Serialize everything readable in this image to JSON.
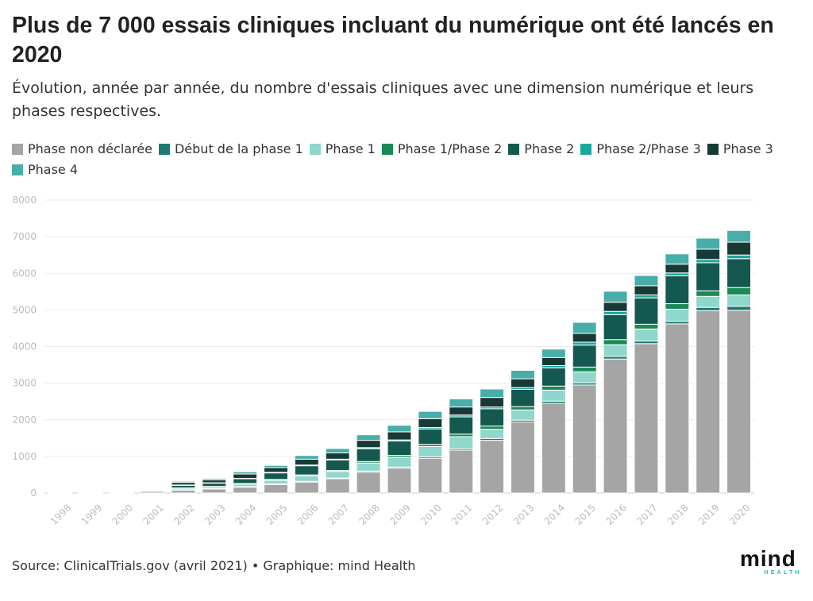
{
  "title": "Plus de 7 000 essais cliniques incluant du numérique ont été lancés en 2020",
  "subtitle": "Évolution, année par année, du nombre d'essais cliniques avec une dimension numérique et leurs phases respectives.",
  "source": "Source: ClinicalTrials.gov (avril 2021) • Graphique: mind Health",
  "logo": {
    "word": "mind",
    "sub": "HEALTH"
  },
  "chart_data": {
    "type": "bar",
    "stacked": true,
    "title": "Plus de 7 000 essais cliniques incluant du numérique ont été lancés en 2020",
    "subtitle": "Évolution, année par année, du nombre d'essais cliniques avec une dimension numérique et leurs phases respectives.",
    "xlabel": "",
    "ylabel": "",
    "ylim": [
      0,
      8000
    ],
    "yticks": [
      0,
      1000,
      2000,
      3000,
      4000,
      5000,
      6000,
      7000,
      8000
    ],
    "grid": true,
    "legend_position": "top",
    "categories": [
      "1998",
      "1999",
      "2000",
      "2001",
      "2002",
      "2003",
      "2004",
      "2005",
      "2006",
      "2007",
      "2008",
      "2009",
      "2010",
      "2011",
      "2012",
      "2013",
      "2014",
      "2015",
      "2016",
      "2017",
      "2018",
      "2019",
      "2020"
    ],
    "series": [
      {
        "name": "Phase non déclarée",
        "color": "#a5a5a5",
        "values": [
          20,
          8,
          15,
          50,
          80,
          110,
          160,
          230,
          300,
          390,
          570,
          680,
          950,
          1170,
          1440,
          1940,
          2450,
          2950,
          3660,
          4080,
          4620,
          4980,
          4990
        ]
      },
      {
        "name": "Début de la phase 1",
        "color": "#1d7a72",
        "values": [
          0,
          0,
          0,
          5,
          10,
          10,
          15,
          20,
          20,
          20,
          30,
          30,
          40,
          40,
          50,
          50,
          60,
          60,
          70,
          70,
          70,
          90,
          110
        ]
      },
      {
        "name": "Phase 1",
        "color": "#8fd6cc",
        "values": [
          10,
          5,
          5,
          20,
          40,
          50,
          70,
          100,
          150,
          180,
          220,
          270,
          280,
          330,
          250,
          280,
          300,
          300,
          320,
          330,
          330,
          300,
          310
        ]
      },
      {
        "name": "Phase 1/Phase 2",
        "color": "#1a8a55",
        "values": [
          0,
          0,
          0,
          5,
          10,
          10,
          15,
          20,
          25,
          25,
          40,
          50,
          60,
          70,
          90,
          90,
          110,
          130,
          140,
          130,
          150,
          150,
          200
        ]
      },
      {
        "name": "Phase 2",
        "color": "#15584f",
        "values": [
          5,
          5,
          5,
          20,
          70,
          90,
          130,
          180,
          250,
          290,
          350,
          390,
          420,
          470,
          470,
          470,
          500,
          600,
          680,
          720,
          760,
          770,
          790
        ]
      },
      {
        "name": "Phase 2/Phase 3",
        "color": "#19a89e",
        "values": [
          0,
          0,
          0,
          0,
          10,
          10,
          10,
          15,
          20,
          20,
          30,
          30,
          40,
          50,
          50,
          50,
          60,
          80,
          90,
          80,
          80,
          90,
          100
        ]
      },
      {
        "name": "Phase 3",
        "color": "#183a36",
        "values": [
          5,
          0,
          0,
          15,
          70,
          80,
          120,
          130,
          160,
          170,
          200,
          220,
          240,
          220,
          260,
          240,
          220,
          240,
          250,
          250,
          240,
          280,
          350
        ]
      },
      {
        "name": "Phase 4",
        "color": "#48aeaa",
        "values": [
          5,
          2,
          5,
          15,
          30,
          40,
          60,
          60,
          100,
          120,
          150,
          180,
          200,
          220,
          230,
          230,
          230,
          300,
          300,
          280,
          280,
          300,
          320
        ]
      }
    ]
  }
}
